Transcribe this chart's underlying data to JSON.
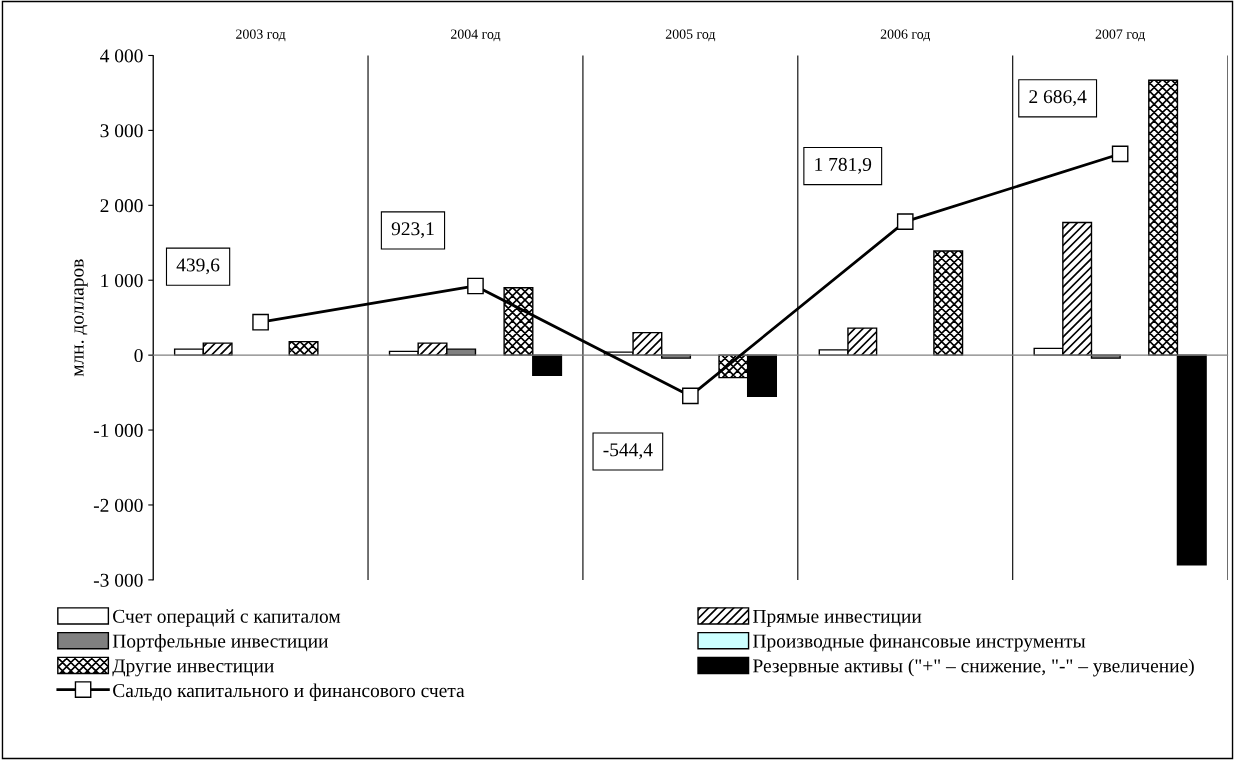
{
  "chart_data": {
    "type": "bar",
    "ylabel": "млн. долларов",
    "categories": [
      "2003 год",
      "2004 год",
      "2005 год",
      "2006 год",
      "2007 год"
    ],
    "series": [
      {
        "name": "Счет операций с капиталом",
        "color": "#ffffff",
        "values": [
          80,
          50,
          40,
          70,
          90
        ]
      },
      {
        "name": "Прямые инвестиции",
        "color": "#000000",
        "values": [
          160,
          160,
          300,
          360,
          1770
        ]
      },
      {
        "name": "Портфельные инвестиции",
        "color": "#808080",
        "values": [
          null,
          80,
          -40,
          null,
          -40
        ]
      },
      {
        "name": "Производные финансовые инструменты",
        "color": "#ccffff",
        "values": [
          null,
          null,
          null,
          null,
          null
        ]
      },
      {
        "name": "Другие инвестиции",
        "color": "#000000",
        "values": [
          180,
          900,
          -300,
          1390,
          3670
        ]
      },
      {
        "name": "Резервные активы (\"+\" – снижение, \"-\" – увеличение)",
        "color": "#000000",
        "values": [
          null,
          -270,
          -550,
          null,
          -2800
        ]
      },
      {
        "name": "Сальдо капитального и финансового счета",
        "type": "line",
        "color": "#000000",
        "marker": "square",
        "values": [
          439.6,
          923.1,
          -544.4,
          1781.9,
          2686.4
        ],
        "value_labels": [
          "439,6",
          "923,1",
          "-544,4",
          "1 781,9",
          "2 686,4"
        ]
      }
    ],
    "ylim": [
      -3000,
      4000
    ],
    "yticks": [
      {
        "value": -3000,
        "label": "-3 000"
      },
      {
        "value": -2000,
        "label": "-2 000"
      },
      {
        "value": -1000,
        "label": "-1 000"
      },
      0,
      {
        "value": 1000,
        "label": "1 000"
      },
      {
        "value": 2000,
        "label": "2 000"
      },
      {
        "value": 3000,
        "label": "3 000"
      },
      {
        "value": 4000,
        "label": "4 000"
      }
    ],
    "grid": "x",
    "legend": "bottom"
  }
}
